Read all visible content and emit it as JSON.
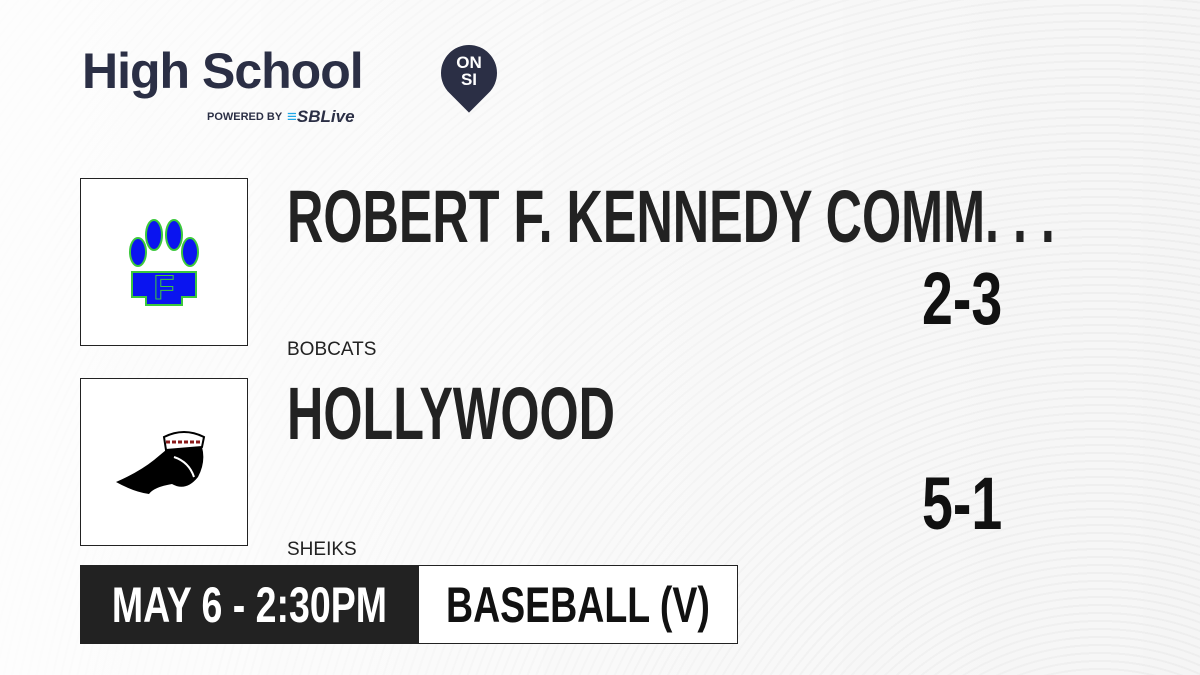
{
  "brand": {
    "title": "High School",
    "badge_top": "ON",
    "badge_bottom": "SI",
    "powered_by": "POWERED BY",
    "partner": "SBLive",
    "colors": {
      "navy": "#2b2f45",
      "partner_blue": "#1ea7e8"
    }
  },
  "teams": [
    {
      "name": "ROBERT F. KENNEDY COMM. . .",
      "mascot": "BOBCATS",
      "record": "2-3",
      "logo_colors": [
        "#0a14f0",
        "#3cc83c"
      ]
    },
    {
      "name": "HOLLYWOOD",
      "mascot": "SHEIKS",
      "record": "5-1"
    }
  ],
  "game": {
    "datetime": "MAY 6 - 2:30PM",
    "sport": "BASEBALL (V)"
  }
}
